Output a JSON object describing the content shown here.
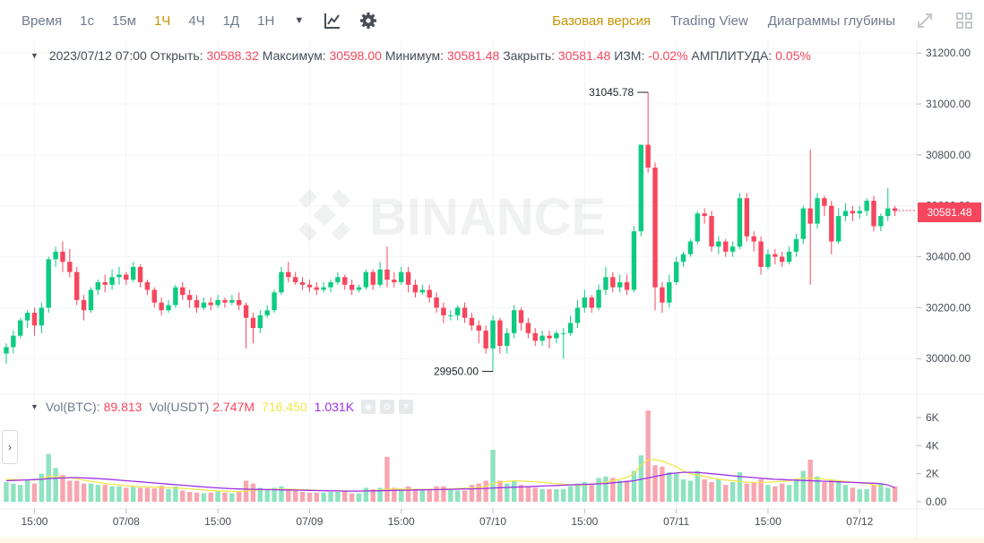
{
  "toolbar": {
    "intervals": [
      {
        "label": "Время",
        "active": false
      },
      {
        "label": "1с",
        "active": false
      },
      {
        "label": "15м",
        "active": false
      },
      {
        "label": "1Ч",
        "active": true
      },
      {
        "label": "4Ч",
        "active": false
      },
      {
        "label": "1Д",
        "active": false
      },
      {
        "label": "1Н",
        "active": false
      }
    ],
    "views": [
      {
        "label": "Базовая версия",
        "active": true
      },
      {
        "label": "Trading View",
        "active": false
      },
      {
        "label": "Диаграммы глубины",
        "active": false
      }
    ],
    "icons": [
      "chevron-down-icon",
      "indicator-icon",
      "gear-icon",
      "fullscreen-icon",
      "grid-layout-icon"
    ]
  },
  "ohlc": {
    "datetime": "2023/07/12 07:00",
    "open_label": "Открыть:",
    "open": "30588.32",
    "high_label": "Максимум:",
    "high": "30598.00",
    "low_label": "Минимум:",
    "low": "30581.48",
    "close_label": "Закрыть:",
    "close": "30581.48",
    "change_label": "ИЗМ:",
    "change": "-0.02%",
    "amp_label": "АМПЛИТУДА:",
    "amp": "0.05%"
  },
  "volume_legend": {
    "btc_label": "Vol(BTC):",
    "btc_value": "89.813",
    "usdt_label": "Vol(USDT)",
    "usdt_value": "2.747M",
    "ma1_value": "716.450",
    "ma2_value": "1.031K"
  },
  "watermark": "BINANCE",
  "last_price": "30581.48",
  "colors": {
    "up": "#0ecb81",
    "down": "#f6465d",
    "ma_short": "#f0e64a",
    "ma_long": "#9b2fe6"
  },
  "chart_data": {
    "type": "candlestick",
    "interval": "1h",
    "price_axis": {
      "ticks": [
        30000,
        30200,
        30400,
        30600,
        30800,
        31000,
        31200
      ],
      "labels": [
        "30000.00",
        "30200.00",
        "30400.00",
        "30600.00",
        "30800.00",
        "31000.00",
        "31200.00"
      ],
      "ylim": [
        29860,
        31250
      ]
    },
    "volume_axis": {
      "ticks": [
        0,
        2000,
        4000,
        6000
      ],
      "labels": [
        "0.00",
        "2K",
        "4K",
        "6K"
      ],
      "ylim": [
        0,
        6700
      ]
    },
    "time_axis": {
      "labels": [
        "15:00",
        "07/08",
        "15:00",
        "07/09",
        "15:00",
        "07/10",
        "15:00",
        "07/11",
        "15:00",
        "07/12"
      ],
      "label_candle_index": [
        4,
        17,
        30,
        43,
        56,
        69,
        82,
        95,
        108,
        121
      ]
    },
    "annotations": [
      {
        "text": "31045.78",
        "value": 31045.78,
        "candle_index": 91
      },
      {
        "text": "29950.00",
        "value": 29950,
        "candle_index": 69
      }
    ],
    "candles": [
      [
        30020,
        30045,
        29980,
        30060
      ],
      [
        30045,
        30090,
        30020,
        30110
      ],
      [
        30090,
        30150,
        30080,
        30160
      ],
      [
        30150,
        30180,
        30120,
        30190
      ],
      [
        30180,
        30130,
        30090,
        30200
      ],
      [
        30130,
        30200,
        30100,
        30220
      ],
      [
        30200,
        30390,
        30180,
        30400
      ],
      [
        30390,
        30420,
        30360,
        30440
      ],
      [
        30420,
        30380,
        30340,
        30460
      ],
      [
        30380,
        30340,
        30320,
        30430
      ],
      [
        30340,
        30230,
        30210,
        30360
      ],
      [
        30230,
        30190,
        30150,
        30250
      ],
      [
        30190,
        30270,
        30180,
        30280
      ],
      [
        30270,
        30300,
        30250,
        30310
      ],
      [
        30300,
        30290,
        30260,
        30330
      ],
      [
        30290,
        30320,
        30270,
        30350
      ],
      [
        30320,
        30330,
        30290,
        30360
      ],
      [
        30330,
        30310,
        30290,
        30340
      ],
      [
        30310,
        30360,
        30300,
        30380
      ],
      [
        30360,
        30300,
        30280,
        30370
      ],
      [
        30300,
        30270,
        30250,
        30310
      ],
      [
        30270,
        30220,
        30200,
        30280
      ],
      [
        30220,
        30190,
        30170,
        30240
      ],
      [
        30190,
        30210,
        30180,
        30230
      ],
      [
        30210,
        30280,
        30200,
        30290
      ],
      [
        30280,
        30250,
        30230,
        30300
      ],
      [
        30250,
        30230,
        30200,
        30270
      ],
      [
        30230,
        30200,
        30180,
        30250
      ],
      [
        30200,
        30220,
        30190,
        30240
      ],
      [
        30220,
        30210,
        30190,
        30240
      ],
      [
        30210,
        30230,
        30200,
        30250
      ],
      [
        30230,
        30220,
        30200,
        30240
      ],
      [
        30220,
        30230,
        30210,
        30250
      ],
      [
        30230,
        30210,
        30190,
        30260
      ],
      [
        30210,
        30160,
        30040,
        30220
      ],
      [
        30160,
        30120,
        30060,
        30180
      ],
      [
        30120,
        30170,
        30100,
        30190
      ],
      [
        30170,
        30190,
        30160,
        30210
      ],
      [
        30190,
        30260,
        30180,
        30270
      ],
      [
        30260,
        30340,
        30250,
        30360
      ],
      [
        30340,
        30320,
        30300,
        30380
      ],
      [
        30320,
        30300,
        30290,
        30340
      ],
      [
        30300,
        30290,
        30270,
        30320
      ],
      [
        30290,
        30280,
        30260,
        30310
      ],
      [
        30280,
        30270,
        30250,
        30300
      ],
      [
        30270,
        30280,
        30260,
        30300
      ],
      [
        30280,
        30300,
        30260,
        30310
      ],
      [
        30300,
        30320,
        30290,
        30340
      ],
      [
        30320,
        30290,
        30270,
        30330
      ],
      [
        30290,
        30270,
        30250,
        30310
      ],
      [
        30270,
        30280,
        30260,
        30290
      ],
      [
        30280,
        30340,
        30270,
        30350
      ],
      [
        30340,
        30290,
        30270,
        30350
      ],
      [
        30290,
        30350,
        30280,
        30380
      ],
      [
        30350,
        30310,
        30280,
        30440
      ],
      [
        30310,
        30300,
        30280,
        30340
      ],
      [
        30300,
        30340,
        30290,
        30360
      ],
      [
        30340,
        30290,
        30260,
        30360
      ],
      [
        30290,
        30260,
        30240,
        30310
      ],
      [
        30260,
        30270,
        30250,
        30290
      ],
      [
        30270,
        30240,
        30220,
        30290
      ],
      [
        30240,
        30200,
        30180,
        30260
      ],
      [
        30200,
        30170,
        30140,
        30220
      ],
      [
        30170,
        30170,
        30150,
        30190
      ],
      [
        30170,
        30200,
        30150,
        30210
      ],
      [
        30200,
        30160,
        30140,
        30220
      ],
      [
        30160,
        30130,
        30110,
        30180
      ],
      [
        30130,
        30110,
        30060,
        30150
      ],
      [
        30110,
        30040,
        30020,
        30130
      ],
      [
        30040,
        30150,
        29950,
        30170
      ],
      [
        30150,
        30050,
        30020,
        30160
      ],
      [
        30050,
        30100,
        30020,
        30120
      ],
      [
        30100,
        30190,
        30080,
        30210
      ],
      [
        30190,
        30140,
        30110,
        30200
      ],
      [
        30140,
        30100,
        30080,
        30160
      ],
      [
        30100,
        30070,
        30050,
        30120
      ],
      [
        30070,
        30090,
        30050,
        30110
      ],
      [
        30090,
        30080,
        30040,
        30110
      ],
      [
        30080,
        30100,
        30060,
        30110
      ],
      [
        30100,
        30100,
        30000,
        30120
      ],
      [
        30100,
        30140,
        30090,
        30170
      ],
      [
        30140,
        30200,
        30120,
        30230
      ],
      [
        30200,
        30240,
        30180,
        30270
      ],
      [
        30240,
        30200,
        30180,
        30250
      ],
      [
        30200,
        30270,
        30190,
        30290
      ],
      [
        30270,
        30320,
        30250,
        30360
      ],
      [
        30320,
        30280,
        30260,
        30340
      ],
      [
        30280,
        30300,
        30260,
        30330
      ],
      [
        30300,
        30270,
        30250,
        30330
      ],
      [
        30270,
        30500,
        30260,
        30520
      ],
      [
        30500,
        30840,
        30480,
        30840
      ],
      [
        30840,
        30750,
        30730,
        31045.78
      ],
      [
        30750,
        30280,
        30190,
        30770
      ],
      [
        30280,
        30220,
        30180,
        30300
      ],
      [
        30220,
        30300,
        30200,
        30330
      ],
      [
        30300,
        30380,
        30290,
        30400
      ],
      [
        30380,
        30410,
        30360,
        30420
      ],
      [
        30410,
        30460,
        30400,
        30470
      ],
      [
        30460,
        30570,
        30450,
        30580
      ],
      [
        30570,
        30560,
        30530,
        30590
      ],
      [
        30560,
        30440,
        30420,
        30580
      ],
      [
        30440,
        30460,
        30410,
        30480
      ],
      [
        30460,
        30420,
        30400,
        30470
      ],
      [
        30420,
        30440,
        30400,
        30460
      ],
      [
        30440,
        30630,
        30430,
        30650
      ],
      [
        30630,
        30480,
        30460,
        30650
      ],
      [
        30480,
        30460,
        30420,
        30500
      ],
      [
        30460,
        30360,
        30330,
        30480
      ],
      [
        30360,
        30410,
        30350,
        30430
      ],
      [
        30410,
        30400,
        30370,
        30430
      ],
      [
        30400,
        30380,
        30360,
        30420
      ],
      [
        30380,
        30420,
        30370,
        30440
      ],
      [
        30420,
        30470,
        30400,
        30490
      ],
      [
        30470,
        30590,
        30450,
        30600
      ],
      [
        30590,
        30530,
        30290,
        30820
      ],
      [
        30530,
        30630,
        30510,
        30650
      ],
      [
        30630,
        30600,
        30560,
        30640
      ],
      [
        30600,
        30460,
        30410,
        30620
      ],
      [
        30460,
        30560,
        30450,
        30590
      ],
      [
        30560,
        30580,
        30540,
        30610
      ],
      [
        30580,
        30570,
        30540,
        30600
      ],
      [
        30570,
        30580,
        30550,
        30600
      ],
      [
        30580,
        30620,
        30560,
        30630
      ],
      [
        30620,
        30520,
        30500,
        30640
      ],
      [
        30520,
        30560,
        30500,
        30570
      ],
      [
        30560,
        30590,
        30540,
        30670
      ],
      [
        30590,
        30580,
        30560,
        30600
      ]
    ],
    "volume": [
      1400,
      1300,
      1200,
      1500,
      1300,
      2000,
      3400,
      2400,
      1900,
      1500,
      1500,
      1300,
      1300,
      1200,
      1200,
      1100,
      1100,
      1000,
      1100,
      1000,
      1000,
      950,
      1150,
      900,
      1100,
      800,
      700,
      650,
      600,
      650,
      750,
      650,
      600,
      700,
      1500,
      1300,
      1000,
      850,
      1000,
      1100,
      900,
      800,
      700,
      650,
      650,
      650,
      700,
      700,
      750,
      600,
      600,
      1000,
      900,
      1000,
      3200,
      1000,
      900,
      1100,
      900,
      800,
      900,
      1100,
      1100,
      900,
      800,
      800,
      1200,
      1300,
      1500,
      3700,
      1500,
      1300,
      1500,
      1200,
      1100,
      1000,
      900,
      900,
      900,
      900,
      1100,
      1300,
      1400,
      1200,
      1700,
      1800,
      1700,
      1500,
      1500,
      2200,
      3300,
      6500,
      2600,
      2500,
      2100,
      2000,
      1600,
      1500,
      2200,
      1600,
      1400,
      1600,
      1200,
      1400,
      2100,
      1300,
      1400,
      1600,
      1200,
      1100,
      1300,
      1200,
      1500,
      2200,
      3000,
      1800,
      1400,
      1600,
      1400,
      1200,
      1000,
      900,
      900,
      1200,
      1300,
      1000,
      1100
    ],
    "ma_short": [
      1600,
      1580,
      1560,
      1550,
      1560,
      1600,
      1800,
      1800,
      1750,
      1700,
      1650,
      1550,
      1450,
      1400,
      1300,
      1250,
      1200,
      1150,
      1100,
      1080,
      1060,
      1040,
      1020,
      1000,
      980,
      950,
      920,
      880,
      840,
      800,
      770,
      750,
      740,
      720,
      760,
      820,
      860,
      880,
      890,
      900,
      900,
      880,
      860,
      840,
      820,
      800,
      780,
      770,
      770,
      760,
      760,
      780,
      800,
      820,
      900,
      920,
      900,
      900,
      890,
      880,
      880,
      890,
      900,
      920,
      940,
      960,
      980,
      1000,
      1100,
      1300,
      1400,
      1450,
      1500,
      1480,
      1460,
      1420,
      1380,
      1340,
      1300,
      1250,
      1200,
      1180,
      1200,
      1250,
      1300,
      1400,
      1500,
      1600,
      1750,
      2000,
      2600,
      3000,
      3000,
      2900,
      2700,
      2500,
      2200,
      2000,
      1900,
      1800,
      1700,
      1600,
      1550,
      1500,
      1450,
      1400,
      1380,
      1380,
      1400,
      1420,
      1450,
      1500,
      1600,
      1700,
      1700,
      1650,
      1600,
      1550,
      1500,
      1450,
      1400,
      1350,
      1300,
      1200,
      1100
    ],
    "ma_long": [
      1500,
      1520,
      1540,
      1560,
      1580,
      1600,
      1650,
      1680,
      1700,
      1720,
      1720,
      1700,
      1680,
      1650,
      1620,
      1580,
      1540,
      1500,
      1460,
      1420,
      1380,
      1340,
      1300,
      1260,
      1220,
      1180,
      1140,
      1100,
      1060,
      1020,
      990,
      960,
      930,
      910,
      900,
      890,
      880,
      870,
      860,
      850,
      840,
      830,
      820,
      810,
      800,
      790,
      780,
      770,
      760,
      760,
      760,
      770,
      780,
      790,
      800,
      810,
      820,
      830,
      840,
      850,
      860,
      870,
      880,
      890,
      900,
      910,
      920,
      930,
      950,
      980,
      1000,
      1020,
      1040,
      1060,
      1080,
      1100,
      1120,
      1140,
      1160,
      1180,
      1200,
      1220,
      1240,
      1260,
      1280,
      1300,
      1350,
      1400,
      1450,
      1500,
      1600,
      1700,
      1800,
      1900,
      2000,
      2050,
      2100,
      2100,
      2080,
      2050,
      2000,
      1950,
      1900,
      1850,
      1800,
      1760,
      1720,
      1680,
      1640,
      1600,
      1580,
      1560,
      1540,
      1520,
      1500,
      1480,
      1460,
      1440,
      1420,
      1400,
      1380,
      1360,
      1340,
      1320,
      1280,
      1200,
      1000
    ]
  }
}
